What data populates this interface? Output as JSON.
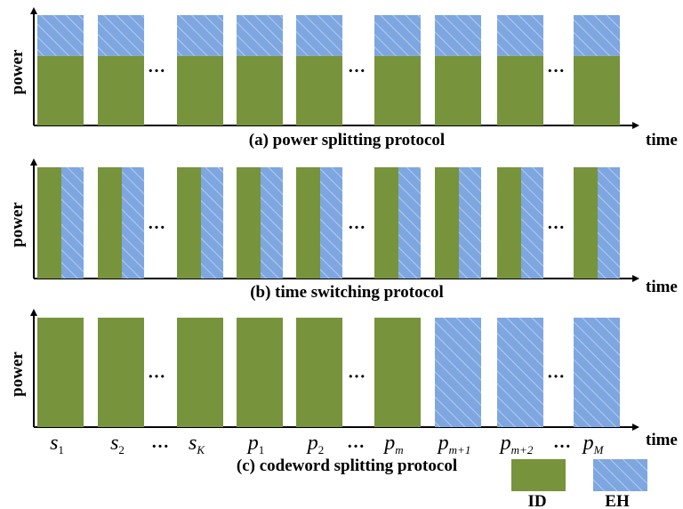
{
  "colors": {
    "green": "#77933c",
    "blue": "#7ea6e0",
    "stripe": "#c6d9f1",
    "axis": "#000000"
  },
  "labels": {
    "y_axis": "power",
    "x_axis": "time"
  },
  "ellipsis": "…",
  "panels": [
    {
      "id": "a",
      "caption": "(a) power splitting protocol",
      "blocks": [
        {
          "kind": "split"
        },
        {
          "kind": "split"
        },
        {
          "kind": "gap"
        },
        {
          "kind": "split"
        },
        {
          "kind": "split"
        },
        {
          "kind": "split"
        },
        {
          "kind": "gap"
        },
        {
          "kind": "split"
        },
        {
          "kind": "split"
        },
        {
          "kind": "split"
        },
        {
          "kind": "gap"
        },
        {
          "kind": "split"
        }
      ],
      "id_fraction": 0.63
    },
    {
      "id": "b",
      "caption": "(b) time switching protocol",
      "blocks": [
        {
          "kind": "switch"
        },
        {
          "kind": "switch"
        },
        {
          "kind": "gap"
        },
        {
          "kind": "switch"
        },
        {
          "kind": "switch"
        },
        {
          "kind": "switch"
        },
        {
          "kind": "gap"
        },
        {
          "kind": "switch"
        },
        {
          "kind": "switch"
        },
        {
          "kind": "switch"
        },
        {
          "kind": "gap"
        },
        {
          "kind": "switch"
        }
      ],
      "id_fraction": 0.5
    },
    {
      "id": "c",
      "caption": "(c) codeword splitting protocol",
      "blocks": [
        {
          "kind": "id",
          "label": "s",
          "sub": "1"
        },
        {
          "kind": "id",
          "label": "s",
          "sub": "2"
        },
        {
          "kind": "gap"
        },
        {
          "kind": "id",
          "label": "s",
          "sub": "K"
        },
        {
          "kind": "id",
          "label": "p",
          "sub": "1"
        },
        {
          "kind": "id",
          "label": "p",
          "sub": "2"
        },
        {
          "kind": "gap"
        },
        {
          "kind": "id",
          "label": "p",
          "sub": "m"
        },
        {
          "kind": "eh",
          "label": "p",
          "sub": "m+1"
        },
        {
          "kind": "eh",
          "label": "p",
          "sub": "m+2"
        },
        {
          "kind": "gap"
        },
        {
          "kind": "eh",
          "label": "p",
          "sub": "M"
        }
      ]
    }
  ],
  "legend": [
    {
      "kind": "id",
      "label": "ID"
    },
    {
      "kind": "eh",
      "label": "EH"
    }
  ]
}
